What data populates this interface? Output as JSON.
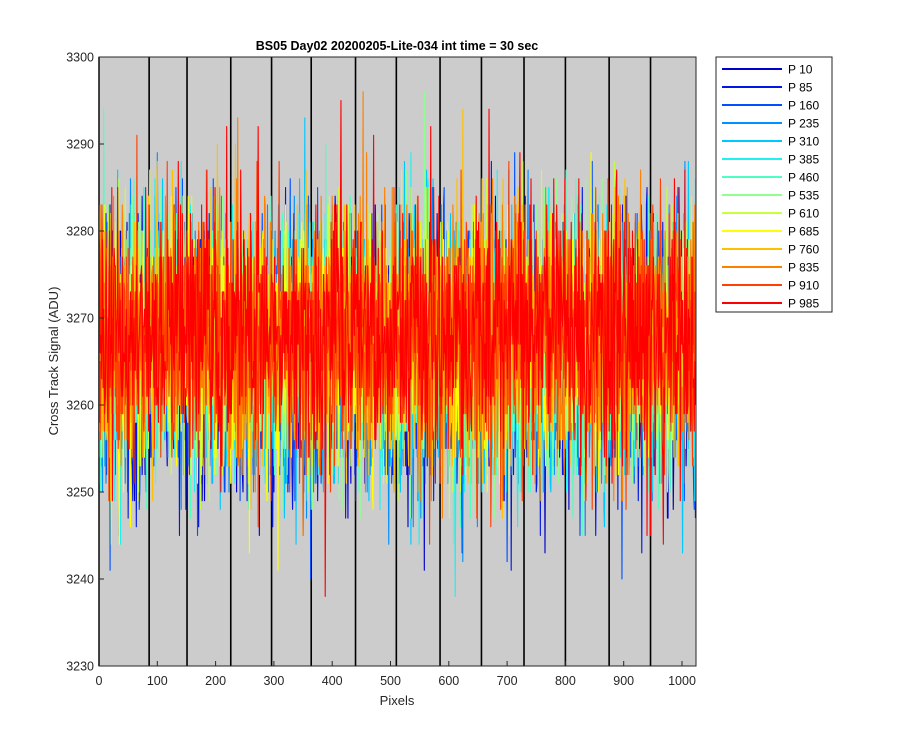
{
  "chart_data": {
    "type": "line",
    "title": "BS05 Day02 20200205-Lite-034 int time = 30 sec",
    "xlabel": "Pixels",
    "ylabel": "Cross Track Signal (ADU)",
    "xlim": [
      0,
      1024
    ],
    "ylim": [
      3230,
      3300
    ],
    "x_ticks": [
      0,
      100,
      200,
      300,
      400,
      500,
      600,
      700,
      800,
      900,
      1000
    ],
    "y_ticks": [
      3230,
      3240,
      3250,
      3260,
      3270,
      3280,
      3290,
      3300
    ],
    "plot_background": "#cccccc",
    "grid": false,
    "legend_position": "outside-top-right",
    "vertical_markers": [
      0,
      86,
      151,
      226,
      296,
      364,
      440,
      510,
      585,
      656,
      729,
      800,
      875,
      946
    ],
    "noise": {
      "mean": 3267,
      "std": 7.5,
      "min": 3235,
      "max": 3296,
      "points_per_series": 1024
    },
    "series": [
      {
        "name": "P 10",
        "color": "#0000c8"
      },
      {
        "name": "P 85",
        "color": "#0018e0"
      },
      {
        "name": "P 160",
        "color": "#0050ff"
      },
      {
        "name": "P 235",
        "color": "#0090ff"
      },
      {
        "name": "P 310",
        "color": "#00c8ff"
      },
      {
        "name": "P 385",
        "color": "#20f0f0"
      },
      {
        "name": "P 460",
        "color": "#50ffc0"
      },
      {
        "name": "P 535",
        "color": "#90ff90"
      },
      {
        "name": "P 610",
        "color": "#c8ff40"
      },
      {
        "name": "P 685",
        "color": "#ffff00"
      },
      {
        "name": "P 760",
        "color": "#ffc000"
      },
      {
        "name": "P 835",
        "color": "#ff8000"
      },
      {
        "name": "P 910",
        "color": "#ff4000"
      },
      {
        "name": "P 985",
        "color": "#ff0000"
      }
    ]
  }
}
